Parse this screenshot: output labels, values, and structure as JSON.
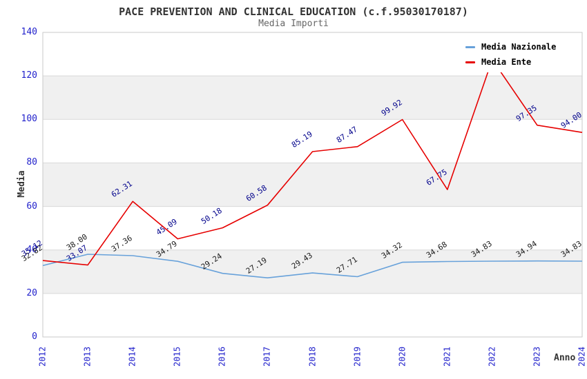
{
  "colors": {
    "tick_label": "#2222cc",
    "title": "#333333",
    "subtitle": "#666666",
    "band": "#f0f0f0",
    "gridline": "#d9d9d9",
    "plot_border": "#c9c9c9",
    "nazionale_line": "#67a1da",
    "ente_line": "#e60000",
    "nazionale_point_label": "#1a1a1a",
    "ente_point_label": "#00008b"
  },
  "chart_data": {
    "type": "line",
    "title": "PACE PREVENTION AND CLINICAL EDUCATION (c.f.95030170187)",
    "subtitle": "Media Importi",
    "xlabel": "Anno",
    "ylabel": "Media",
    "x": [
      2012,
      2013,
      2014,
      2015,
      2016,
      2017,
      2018,
      2019,
      2020,
      2021,
      2022,
      2023,
      2024
    ],
    "ylim": [
      0,
      140
    ],
    "yticks": [
      0,
      20,
      40,
      60,
      80,
      100,
      120,
      140
    ],
    "grid": true,
    "alternating_bands": true,
    "legend_position": "top-right",
    "series": [
      {
        "name": "Media Nazionale",
        "color": "#67a1da",
        "label_color": "#1a1a1a",
        "values": [
          32.82,
          38.0,
          37.36,
          34.79,
          29.24,
          27.19,
          29.43,
          27.71,
          34.32,
          34.68,
          34.83,
          34.94,
          34.83
        ],
        "point_labels": [
          "32.82",
          "38.00",
          "37.36",
          "34.79",
          "29.24",
          "27.19",
          "29.43",
          "27.71",
          "34.32",
          "34.68",
          "34.83",
          "34.94",
          "34.83"
        ]
      },
      {
        "name": "Media Ente",
        "color": "#e60000",
        "label_color": "#00008b",
        "values": [
          35.12,
          33.07,
          62.31,
          45.09,
          50.18,
          60.58,
          85.19,
          87.47,
          99.92,
          67.75,
          127.5,
          97.35,
          94.0
        ],
        "point_labels": [
          "35.12",
          "33.07",
          "62.31",
          "45.09",
          "50.18",
          "60.58",
          "85.19",
          "87.47",
          "99.92",
          "67.75",
          "",
          "97.35",
          "94.00"
        ]
      }
    ]
  }
}
